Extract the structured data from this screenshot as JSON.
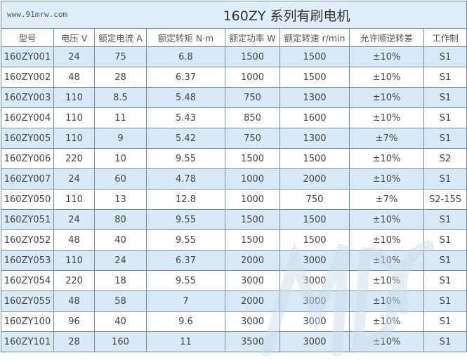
{
  "title": "160ZY 系列有刷电机",
  "headers": [
    "型号",
    "电压 V",
    "额定电流 A",
    "额定转矩 N·m",
    "额定功率 W",
    "额定转速 r/min",
    "允许顺逆转差",
    "工作制"
  ],
  "rows": [
    [
      "160ZY001",
      "24",
      "75",
      "6.8",
      "1500",
      "1500",
      "±10%",
      "S1"
    ],
    [
      "160ZY002",
      "48",
      "28",
      "6.37",
      "1000",
      "1500",
      "±10%",
      "S1"
    ],
    [
      "160ZY003",
      "110",
      "8.5",
      "5.48",
      "750",
      "1300",
      "±10%",
      "S1"
    ],
    [
      "160ZY004",
      "110",
      "11",
      "5.43",
      "850",
      "1600",
      "±10%",
      "S1"
    ],
    [
      "160ZY005",
      "110",
      "9",
      "5.42",
      "750",
      "1300",
      "±7%",
      "S1"
    ],
    [
      "160ZY006",
      "220",
      "10",
      "9.55",
      "1500",
      "1500",
      "±10%",
      "S2"
    ],
    [
      "160ZY007",
      "24",
      "60",
      "4.78",
      "1000",
      "2000",
      "±10%",
      "S1"
    ],
    [
      "160ZY050",
      "110",
      "13",
      "12.8",
      "1000",
      "750",
      "±7%",
      "S2-15S"
    ],
    [
      "160ZY051",
      "24",
      "80",
      "9.55",
      "1500",
      "1500",
      "±10%",
      "S1"
    ],
    [
      "160ZY052",
      "48",
      "40",
      "9.55",
      "1500",
      "1500",
      "±10%",
      "S1"
    ],
    [
      "160ZY053",
      "110",
      "24",
      "6.37",
      "2000",
      "3000",
      "±10%",
      "S1"
    ],
    [
      "160ZY054",
      "220",
      "18",
      "9.55",
      "3000",
      "3000",
      "±10%",
      "S1"
    ],
    [
      "160ZY055",
      "48",
      "58",
      "7",
      "2000",
      "3000",
      "±10%",
      "S1"
    ],
    [
      "160ZY100",
      "96",
      "40",
      "9.6",
      "3000",
      "3000",
      "±10%",
      "S1"
    ],
    [
      "160ZY101",
      "28",
      "160",
      "11",
      "3500",
      "3000",
      "±10%",
      "S1"
    ]
  ],
  "watermark": "www.91mrw.com",
  "logo_text": "MBC",
  "colors": {
    "alt_row": "#d8eaf7",
    "title_bg": "#dfeef9",
    "border": "#7a8a96"
  }
}
